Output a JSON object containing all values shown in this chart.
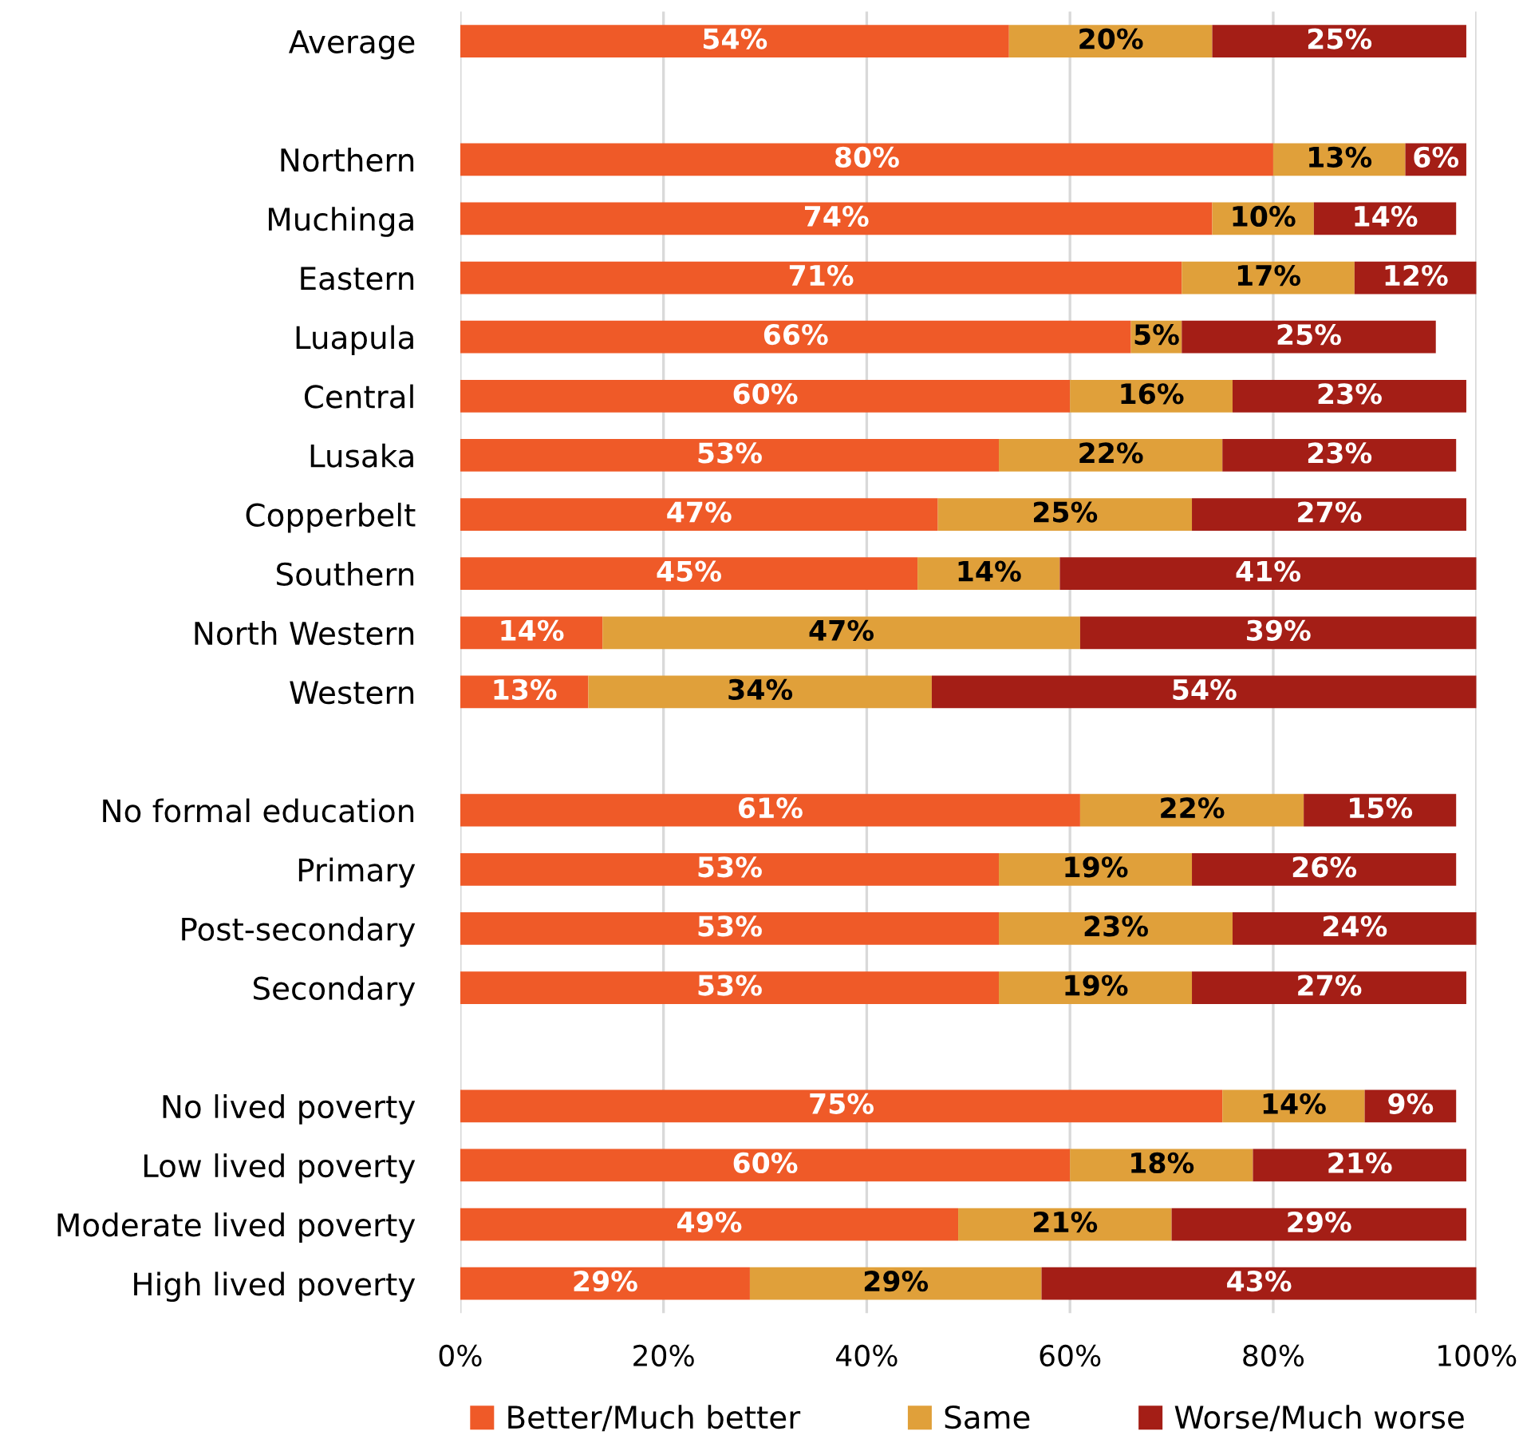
{
  "chart_data": {
    "type": "bar",
    "orientation": "horizontal",
    "stacked": true,
    "categories": [
      "Average",
      null,
      "Northern",
      "Muchinga",
      "Eastern",
      "Luapula",
      "Central",
      "Lusaka",
      "Copperbelt",
      "Southern",
      "North Western",
      "Western",
      null,
      "No formal education",
      "Primary",
      "Post-secondary",
      "Secondary",
      null,
      "No lived poverty",
      "Low lived poverty",
      "Moderate lived poverty",
      "High lived poverty"
    ],
    "series": [
      {
        "name": "Better/Much better",
        "color": "#ef5a28",
        "values": [
          54,
          null,
          80,
          74,
          71,
          66,
          60,
          53,
          47,
          45,
          14,
          12.6,
          null,
          61,
          53,
          53,
          53,
          null,
          75,
          60,
          49,
          28.5
        ],
        "value_labels": [
          "54%",
          null,
          "80%",
          "74%",
          "71%",
          "66%",
          "60%",
          "53%",
          "47%",
          "45%",
          "14%",
          "13%",
          null,
          "61%",
          "53%",
          "53%",
          "53%",
          null,
          "75%",
          "60%",
          "49%",
          "29%"
        ]
      },
      {
        "name": "Same",
        "color": "#e0a03a",
        "values": [
          20,
          null,
          13,
          10,
          17,
          5,
          16,
          22,
          25,
          14,
          47,
          33.8,
          null,
          22,
          19,
          23,
          19,
          null,
          14,
          18,
          21,
          28.7
        ],
        "value_labels": [
          "20%",
          null,
          "13%",
          "10%",
          "17%",
          "5%",
          "16%",
          "22%",
          "25%",
          "14%",
          "47%",
          "34%",
          null,
          "22%",
          "19%",
          "23%",
          "19%",
          null,
          "14%",
          "18%",
          "21%",
          "29%"
        ]
      },
      {
        "name": "Worse/Much worse",
        "color": "#a41e16",
        "values": [
          25,
          null,
          6,
          14,
          12,
          25,
          23,
          23,
          27,
          41,
          39,
          53.6,
          null,
          15,
          26,
          24,
          27,
          null,
          9,
          21,
          29,
          42.8
        ],
        "value_labels": [
          "25%",
          null,
          "6%",
          "14%",
          "12%",
          "25%",
          "23%",
          "23%",
          "27%",
          "41%",
          "39%",
          "54%",
          null,
          "15%",
          "26%",
          "24%",
          "27%",
          null,
          "9%",
          "21%",
          "29%",
          "43%"
        ]
      }
    ],
    "xlim": [
      0,
      100
    ],
    "xticks": [
      {
        "value": 0,
        "label": "0%"
      },
      {
        "value": 20,
        "label": "20%"
      },
      {
        "value": 40,
        "label": "40%"
      },
      {
        "value": 60,
        "label": "60%"
      },
      {
        "value": 80,
        "label": "80%"
      },
      {
        "value": 100,
        "label": "100%"
      }
    ],
    "grid": "x",
    "legend": "bottom"
  }
}
